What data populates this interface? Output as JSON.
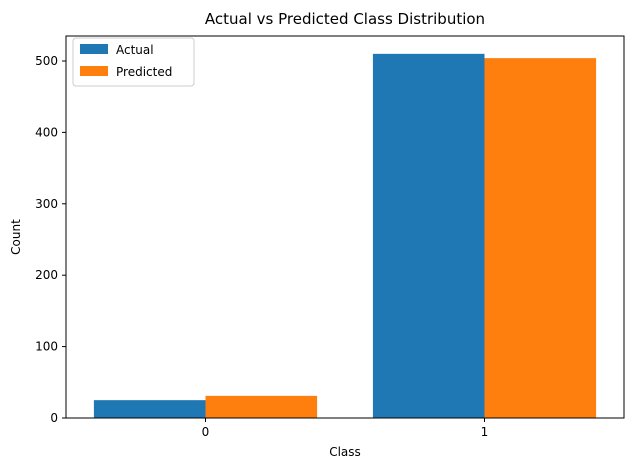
{
  "chart_data": {
    "type": "bar",
    "title": "Actual vs Predicted Class Distribution",
    "xlabel": "Class",
    "ylabel": "Count",
    "categories": [
      "0",
      "1"
    ],
    "series": [
      {
        "name": "Actual",
        "values": [
          25,
          510
        ],
        "color": "#1f77b4"
      },
      {
        "name": "Predicted",
        "values": [
          31,
          504
        ],
        "color": "#ff7f0e"
      }
    ],
    "ylim": [
      0,
      535
    ],
    "yticks": [
      0,
      100,
      200,
      300,
      400,
      500
    ],
    "grid": false,
    "legend_position": "top-left"
  }
}
